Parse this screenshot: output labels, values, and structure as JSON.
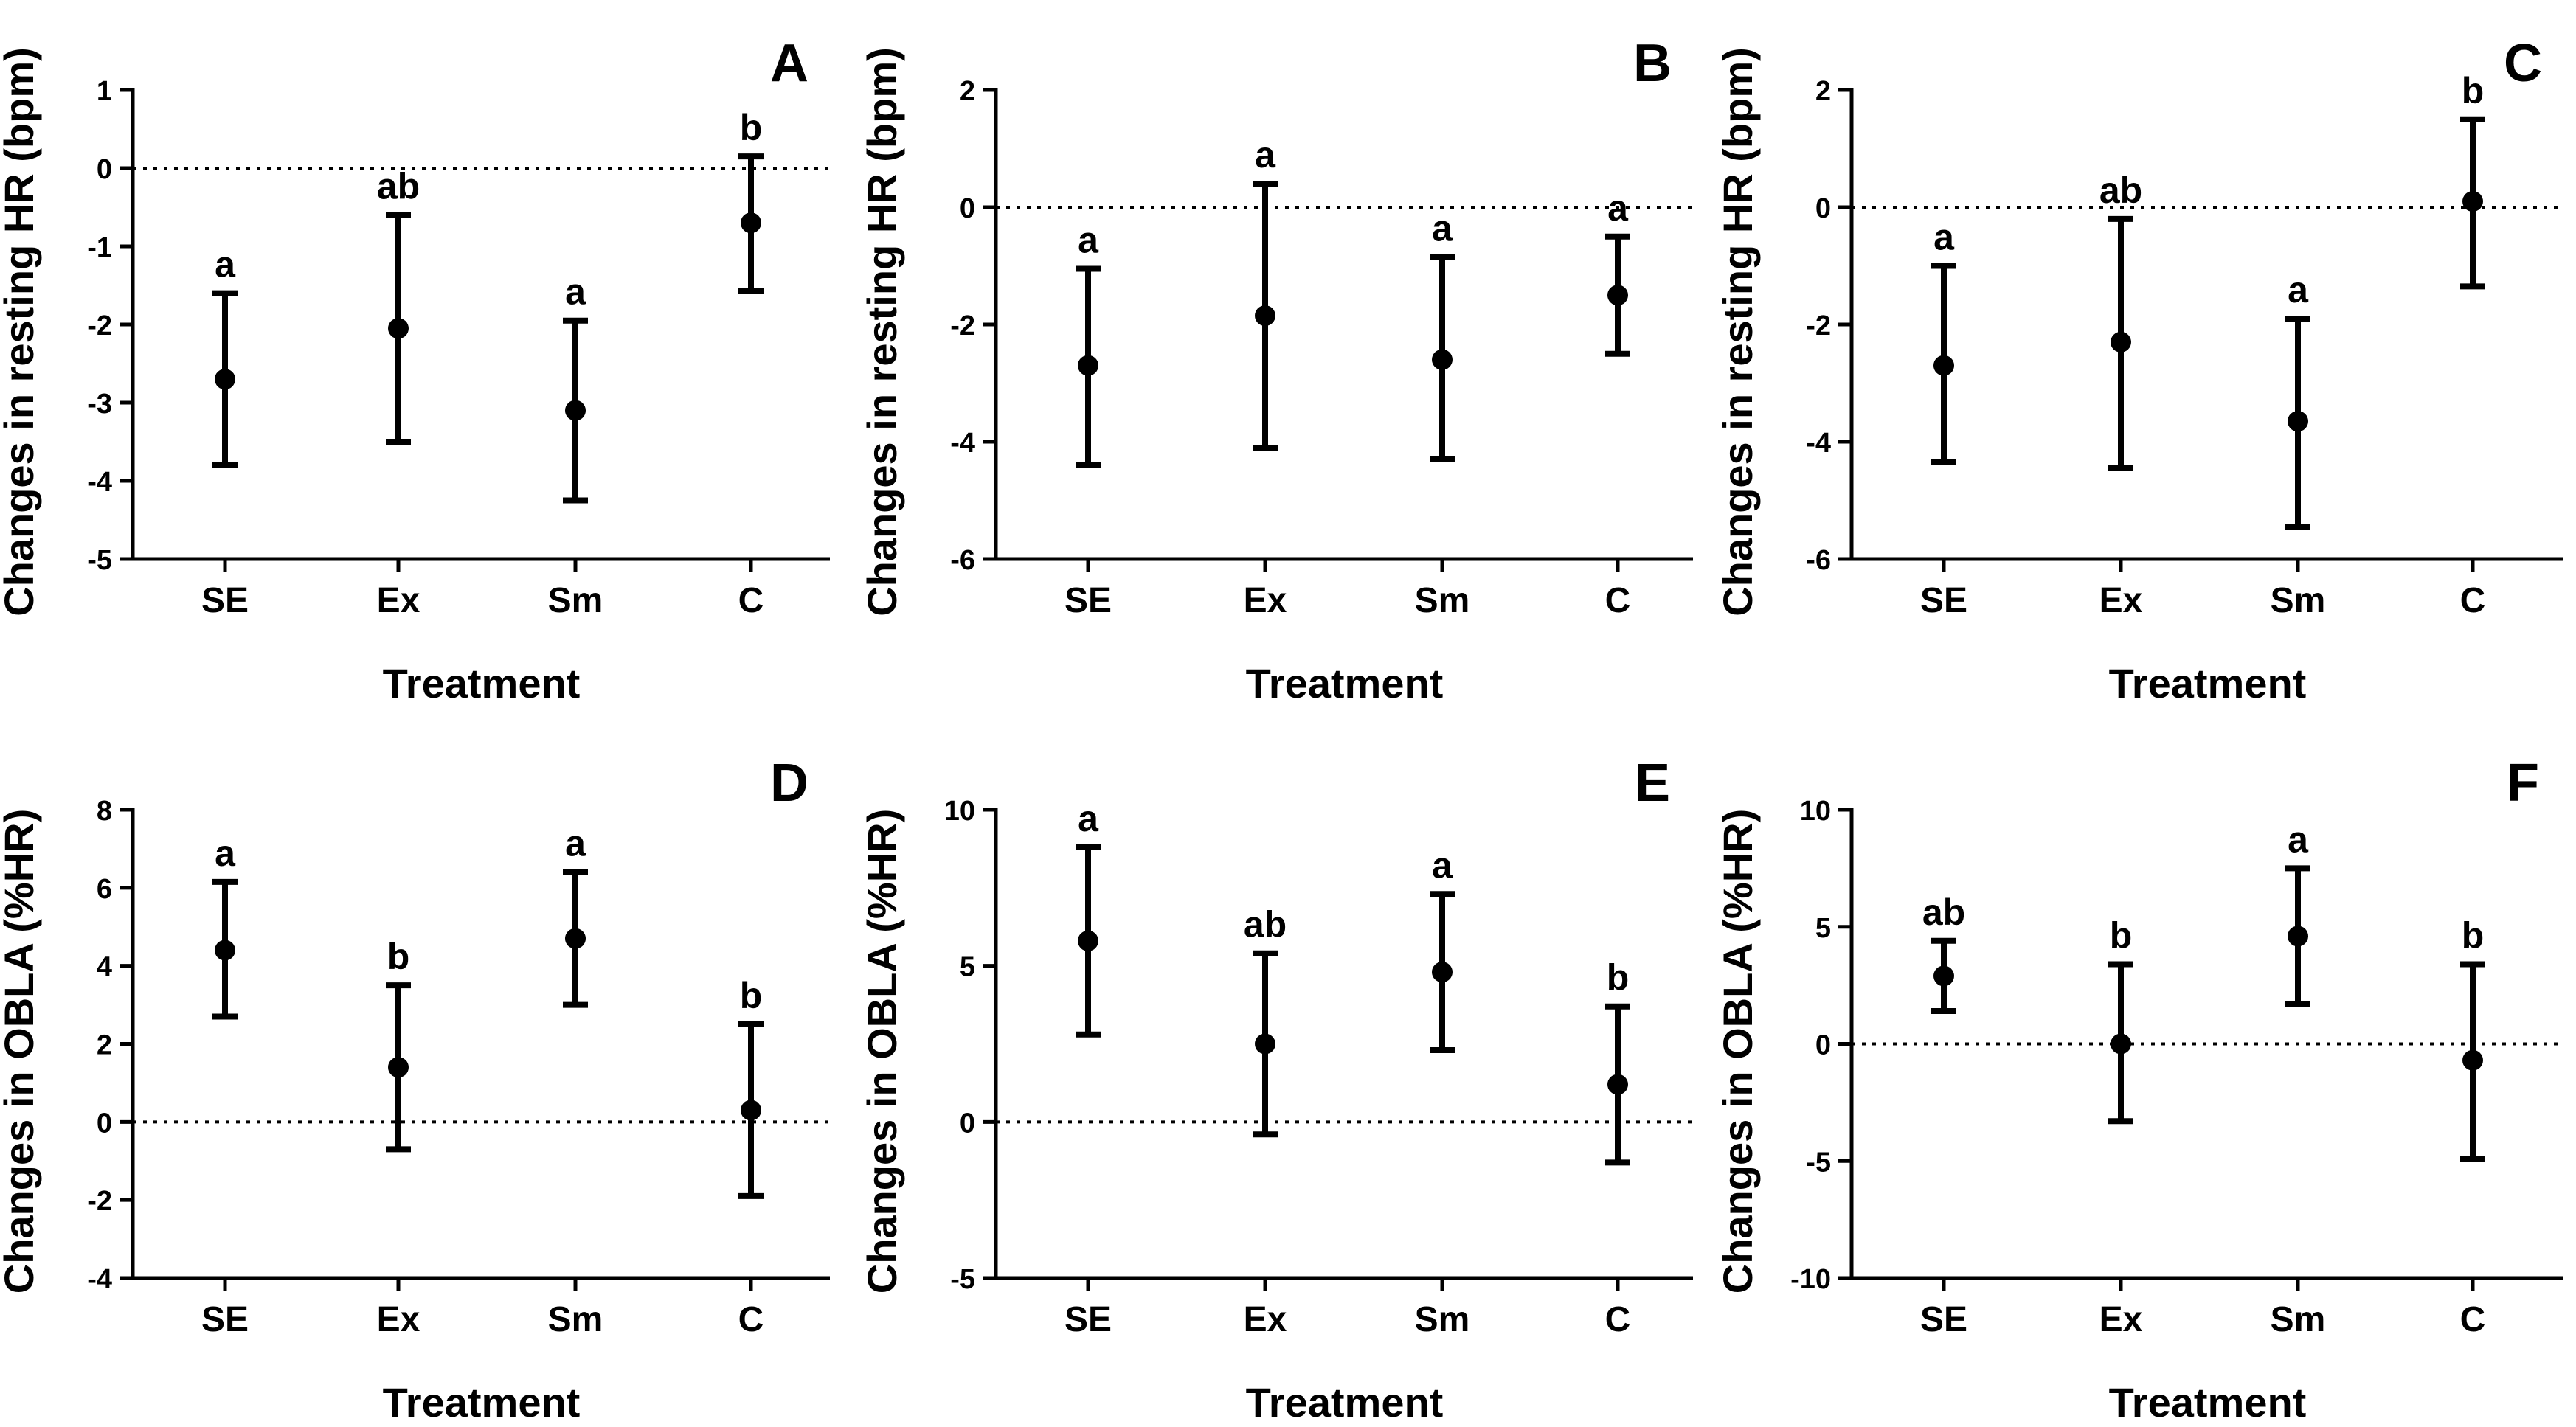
{
  "chart_data": [
    {
      "panel": "A",
      "type": "scatter",
      "xlabel": "Treatment",
      "ylabel": "Changes in resting HR (bpm)",
      "categories": [
        "SE",
        "Ex",
        "Sm",
        "C"
      ],
      "ylim": [
        -5,
        1
      ],
      "yticks": [
        "1",
        "0",
        "-1",
        "-2",
        "-3",
        "-4",
        "-5"
      ],
      "ytick_values": [
        1,
        0,
        -1,
        -2,
        -3,
        -4,
        -5
      ],
      "reference_line": 0,
      "means": [
        -2.7,
        -2.05,
        -3.1,
        -0.7
      ],
      "lower": [
        -3.8,
        -3.5,
        -4.25,
        -1.57
      ],
      "upper": [
        -1.6,
        -0.6,
        -1.95,
        0.15
      ],
      "letters": [
        "a",
        "ab",
        "a",
        "b"
      ]
    },
    {
      "panel": "B",
      "type": "scatter",
      "xlabel": "Treatment",
      "ylabel": "Changes in resting HR (bpm)",
      "categories": [
        "SE",
        "Ex",
        "Sm",
        "C"
      ],
      "ylim": [
        -6,
        2
      ],
      "yticks": [
        "2",
        "0",
        "-2",
        "-4",
        "-6"
      ],
      "ytick_values": [
        2,
        0,
        -2,
        -4,
        -6
      ],
      "reference_line": 0,
      "means": [
        -2.7,
        -1.85,
        -2.6,
        -1.5
      ],
      "lower": [
        -4.4,
        -4.1,
        -4.3,
        -2.5
      ],
      "upper": [
        -1.05,
        0.4,
        -0.85,
        -0.5
      ],
      "letters": [
        "a",
        "a",
        "a",
        "a"
      ]
    },
    {
      "panel": "C",
      "type": "scatter",
      "xlabel": "Treatment",
      "ylabel": "Changes in resting HR (bpm)",
      "categories": [
        "SE",
        "Ex",
        "Sm",
        "C"
      ],
      "ylim": [
        -6,
        2
      ],
      "yticks": [
        "2",
        "0",
        "-2",
        "-4",
        "-6"
      ],
      "ytick_values": [
        2,
        0,
        -2,
        -4,
        -6
      ],
      "reference_line": 0,
      "means": [
        -2.7,
        -2.3,
        -3.65,
        0.1
      ],
      "lower": [
        -4.35,
        -4.45,
        -5.45,
        -1.35
      ],
      "upper": [
        -1.0,
        -0.2,
        -1.9,
        1.5
      ],
      "letters": [
        "a",
        "ab",
        "a",
        "b"
      ]
    },
    {
      "panel": "D",
      "type": "scatter",
      "xlabel": "Treatment",
      "ylabel": "Changes in OBLA (%HR)",
      "categories": [
        "SE",
        "Ex",
        "Sm",
        "C"
      ],
      "ylim": [
        -4,
        8
      ],
      "yticks": [
        "8",
        "6",
        "4",
        "2",
        "0",
        "-2",
        "-4"
      ],
      "ytick_values": [
        8,
        6,
        4,
        2,
        0,
        -2,
        -4
      ],
      "reference_line": 0,
      "means": [
        4.4,
        1.4,
        4.7,
        0.3
      ],
      "lower": [
        2.7,
        -0.7,
        3.0,
        -1.9
      ],
      "upper": [
        6.15,
        3.5,
        6.4,
        2.5
      ],
      "letters": [
        "a",
        "b",
        "a",
        "b"
      ]
    },
    {
      "panel": "E",
      "type": "scatter",
      "xlabel": "Treatment",
      "ylabel": "Changes in OBLA (%HR)",
      "categories": [
        "SE",
        "Ex",
        "Sm",
        "C"
      ],
      "ylim": [
        -5,
        10
      ],
      "yticks": [
        "10",
        "5",
        "0",
        "-5"
      ],
      "ytick_values": [
        10,
        5,
        0,
        -5
      ],
      "reference_line": 0,
      "means": [
        5.8,
        2.5,
        4.8,
        1.2
      ],
      "lower": [
        2.8,
        -0.4,
        2.3,
        -1.3
      ],
      "upper": [
        8.8,
        5.4,
        7.3,
        3.7
      ],
      "letters": [
        "a",
        "ab",
        "a",
        "b"
      ]
    },
    {
      "panel": "F",
      "type": "scatter",
      "xlabel": "Treatment",
      "ylabel": "Changes in OBLA (%HR)",
      "categories": [
        "SE",
        "Ex",
        "Sm",
        "C"
      ],
      "ylim": [
        -10,
        10
      ],
      "yticks": [
        "10",
        "5",
        "0",
        "-5",
        "-10"
      ],
      "ytick_values": [
        10,
        5,
        0,
        -5,
        -10
      ],
      "reference_line": 0,
      "means": [
        2.9,
        0.0,
        4.6,
        -0.7
      ],
      "lower": [
        1.4,
        -3.3,
        1.7,
        -4.9
      ],
      "upper": [
        4.4,
        3.4,
        7.5,
        3.4
      ],
      "letters": [
        "ab",
        "b",
        "a",
        "b"
      ]
    }
  ]
}
